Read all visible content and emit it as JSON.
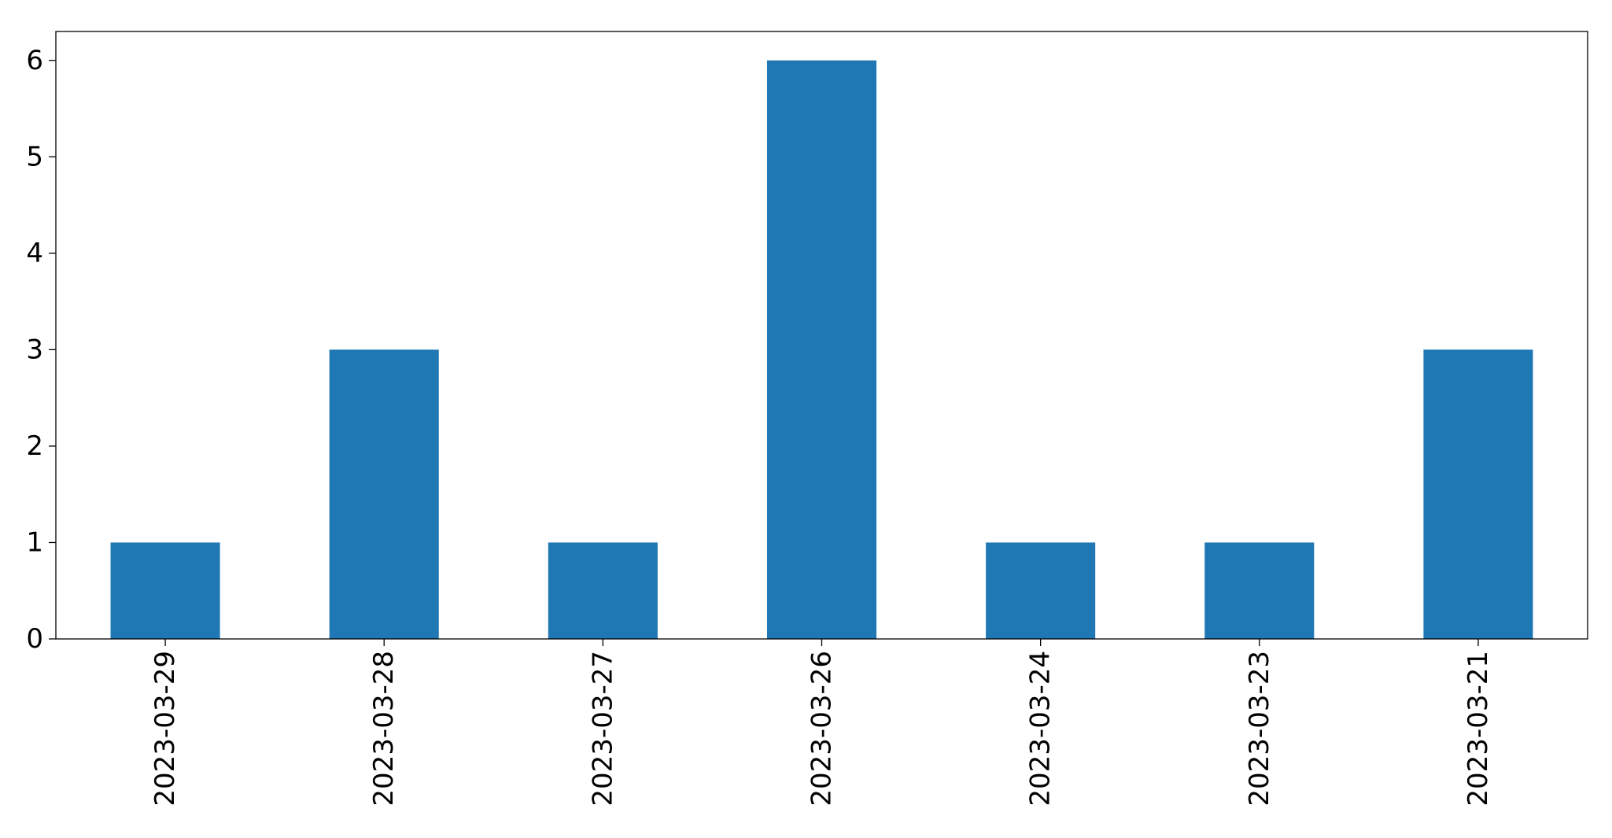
{
  "chart_data": {
    "type": "bar",
    "title": "",
    "xlabel": "",
    "ylabel": "",
    "categories": [
      "2023-03-29",
      "2023-03-28",
      "2023-03-27",
      "2023-03-26",
      "2023-03-24",
      "2023-03-23",
      "2023-03-21"
    ],
    "values": [
      1,
      3,
      1,
      6,
      1,
      1,
      3
    ],
    "ylim": [
      0,
      6.3
    ],
    "yticks": [
      0,
      1,
      2,
      3,
      4,
      5,
      6
    ],
    "xtick_rotation": "vertical",
    "grid": false,
    "legend": "none",
    "bar_color": "#1f77b4"
  }
}
